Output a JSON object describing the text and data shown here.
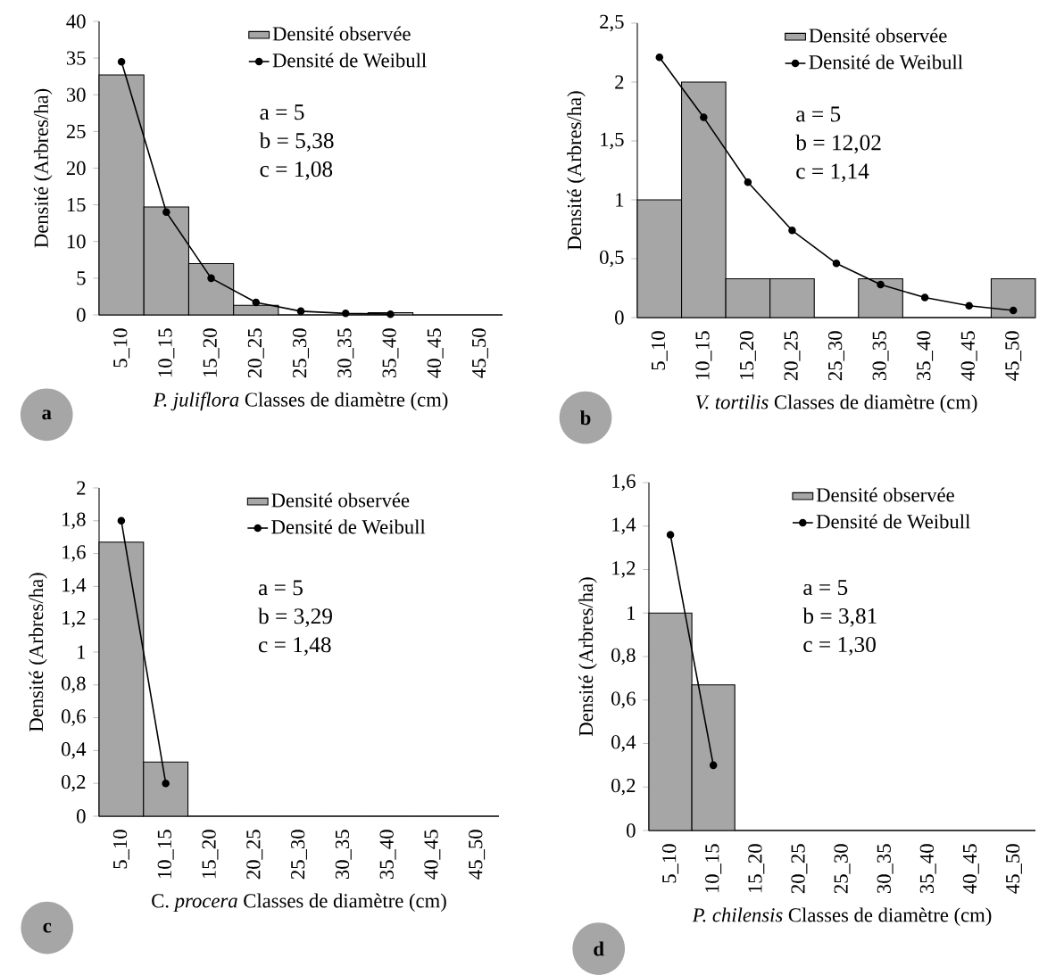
{
  "chart_data": [
    {
      "type": "bar",
      "xlabel": "*P. juliflora* Classes de diamètre (cm)",
      "ylabel": "Densité (Arbres/ha)",
      "categories": [
        "5_10",
        "10_15",
        "15_20",
        "20_25",
        "25_30",
        "30_35",
        "35_40",
        "40_45",
        "45_50"
      ],
      "series": [
        {
          "name": "Densité observée",
          "color": "#a6a6a6",
          "values": [
            32.7,
            14.7,
            7,
            1.3,
            0,
            0,
            0.3,
            0,
            0
          ]
        },
        {
          "name": "Densité de Weibull",
          "type": "line",
          "color": "#000000",
          "values": [
            34.5,
            14,
            5,
            1.7,
            0.5,
            0.2,
            0.1,
            null,
            null
          ]
        }
      ],
      "ylim": [
        0,
        40
      ],
      "yticks": [
        0,
        5,
        10,
        15,
        20,
        25,
        30,
        35,
        40
      ],
      "legend": "top right",
      "marker": "circle",
      "annotations": [
        "a = 5",
        "b = 5,38",
        "c = 1,08",
        "**a**"
      ]
    },
    {
      "type": "bar",
      "xlabel": "*V. tortilis* Classes de diamètre (cm)",
      "ylabel": "Densité (Arbres/ha)",
      "categories": [
        "5_10",
        "10_15",
        "15_20",
        "20_25",
        "25_30",
        "30_35",
        "35_40",
        "40_45",
        "45_50"
      ],
      "series": [
        {
          "name": "Densité observée",
          "color": "#a6a6a6",
          "values": [
            1,
            2,
            0.33,
            0.33,
            0,
            0.33,
            0,
            0,
            0.33
          ]
        },
        {
          "name": "Densité de Weibull",
          "type": "line",
          "color": "#000000",
          "values": [
            2.21,
            1.7,
            1.15,
            0.74,
            0.46,
            0.28,
            0.17,
            0.1,
            0.06
          ]
        }
      ],
      "ylim": [
        0,
        2.5
      ],
      "yticks": [
        0,
        {
          "value": 0.5,
          "label": "0,5"
        },
        1,
        {
          "value": 1.5,
          "label": "1,5"
        },
        2,
        {
          "value": 2.5,
          "label": "2,5"
        }
      ],
      "legend": "top right",
      "marker": "circle",
      "annotations": [
        "a = 5",
        "b = 12,02",
        "c = 1,14",
        "**b**"
      ]
    },
    {
      "type": "bar",
      "xlabel": "C. *procera* Classes de diamètre (cm)",
      "ylabel": "Densité (Arbres/ha)",
      "categories": [
        "5_10",
        "10_15",
        "15_20",
        "20_25",
        "25_30",
        "30_35",
        "35_40",
        "40_45",
        "45_50"
      ],
      "series": [
        {
          "name": "Densité observée",
          "color": "#a6a6a6",
          "values": [
            1.67,
            0.33,
            0,
            0,
            0,
            0,
            0,
            0,
            0
          ]
        },
        {
          "name": "Densité de Weibull",
          "type": "line",
          "color": "#000000",
          "values": [
            1.8,
            0.2,
            null,
            null,
            null,
            null,
            null,
            null,
            null
          ]
        }
      ],
      "ylim": [
        0,
        2
      ],
      "yticks": [
        0,
        {
          "value": 0.2,
          "label": "0,2"
        },
        {
          "value": 0.4,
          "label": "0,4"
        },
        {
          "value": 0.6,
          "label": "0,6"
        },
        {
          "value": 0.8,
          "label": "0,8"
        },
        1,
        {
          "value": 1.2,
          "label": "1,2"
        },
        {
          "value": 1.4,
          "label": "1,4"
        },
        {
          "value": 1.6,
          "label": "1,6"
        },
        {
          "value": 1.8,
          "label": "1,8"
        },
        2
      ],
      "legend": "top right",
      "marker": "circle",
      "annotations": [
        "a = 5",
        "b = 3,29",
        "c = 1,48",
        "**c**"
      ]
    },
    {
      "type": "bar",
      "xlabel": "*P. chilensis* Classes de diamètre (cm)",
      "ylabel": "Densité (Arbres/ha)",
      "categories": [
        "5_10",
        "10_15",
        "15_20",
        "20_25",
        "25_30",
        "30_35",
        "35_40",
        "40_45",
        "45_50"
      ],
      "series": [
        {
          "name": "Densité observée",
          "color": "#a6a6a6",
          "values": [
            1,
            0.67,
            0,
            0,
            0,
            0,
            0,
            0,
            0
          ]
        },
        {
          "name": "Densité de Weibull",
          "type": "line",
          "color": "#000000",
          "values": [
            1.36,
            0.3,
            null,
            null,
            null,
            null,
            null,
            null,
            null
          ]
        }
      ],
      "ylim": [
        0,
        1.6
      ],
      "yticks": [
        0,
        {
          "value": 0.2,
          "label": "0,2"
        },
        {
          "value": 0.4,
          "label": "0,4"
        },
        {
          "value": 0.6,
          "label": "0,6"
        },
        {
          "value": 0.8,
          "label": "0,8"
        },
        1,
        {
          "value": 1.2,
          "label": "1,2"
        },
        {
          "value": 1.4,
          "label": "1,4"
        },
        {
          "value": 1.6,
          "label": "1,6"
        }
      ],
      "legend": "top right",
      "marker": "circle",
      "annotations": [
        "a = 5",
        "b = 3,81",
        "c = 1,30",
        "**d**"
      ]
    }
  ]
}
